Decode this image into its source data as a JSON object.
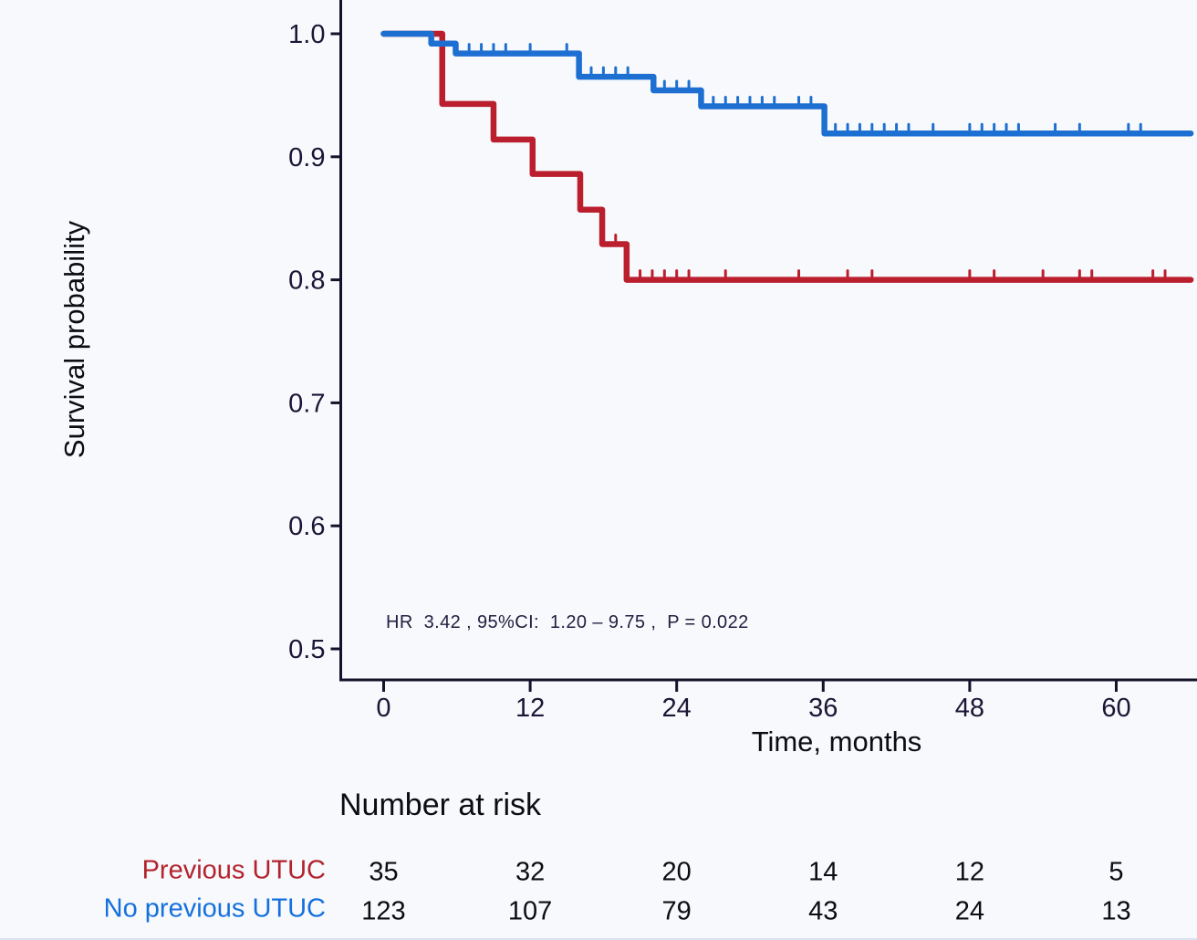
{
  "figure": {
    "background": "#f7f9fc",
    "axis_color": "#16112b",
    "tick_label_color": "#1d1535",
    "text_color": "#0c0c12"
  },
  "chart_data": {
    "type": "line",
    "subtype": "kaplan-meier-step",
    "title": "",
    "xlabel": "Time, months",
    "ylabel": "Survival probability",
    "annotation": "HR  3.42 , 95%CI:  1.20 – 9.75 ,  P = 0.022",
    "x_ticks": [
      0,
      12,
      24,
      36,
      48,
      60
    ],
    "x_tick_labels": [
      "0",
      "12",
      "24",
      "36",
      "48",
      "60"
    ],
    "y_ticks": [
      1.0,
      0.9,
      0.8,
      0.7,
      0.6,
      0.5
    ],
    "y_tick_labels": [
      "1.0",
      "0.9",
      "0.8",
      "0.7",
      "0.6",
      "0.5"
    ],
    "xlim": [
      -3.6,
      66.6
    ],
    "ylim": [
      0.475,
      1.027
    ],
    "x_end": 66.1,
    "grid": false,
    "legend": "none",
    "series": [
      {
        "name": "Previous UTUC",
        "color": "#bb1f2e",
        "steps": [
          [
            0,
            1.0
          ],
          [
            4.8,
            0.943
          ],
          [
            9.0,
            0.914
          ],
          [
            12.2,
            0.886
          ],
          [
            16.1,
            0.857
          ],
          [
            17.9,
            0.829
          ],
          [
            19.9,
            0.8
          ]
        ],
        "censor_times": [
          19,
          21,
          22,
          23,
          24,
          25,
          28,
          34,
          38,
          40,
          48,
          50,
          54,
          57,
          58,
          63,
          64
        ]
      },
      {
        "name": "No previous UTUC",
        "color": "#1e6fd2",
        "steps": [
          [
            0,
            1.0
          ],
          [
            3.9,
            0.992
          ],
          [
            5.9,
            0.984
          ],
          [
            16.0,
            0.965
          ],
          [
            22.1,
            0.954
          ],
          [
            26.0,
            0.941
          ],
          [
            36.1,
            0.919
          ]
        ],
        "censor_times": [
          7,
          8,
          9,
          10,
          12,
          15,
          17,
          18,
          19,
          20,
          23,
          24,
          25,
          27,
          28,
          29,
          30,
          31,
          32,
          34,
          35,
          37,
          38,
          39,
          40,
          41,
          42,
          43,
          45,
          48,
          49,
          50,
          51,
          52,
          55,
          57,
          61,
          62
        ]
      }
    ],
    "risk_table": {
      "title": "Number at risk",
      "times": [
        0,
        12,
        24,
        36,
        48,
        60
      ],
      "rows": [
        {
          "label": "Previous UTUC",
          "color": "#b2232e",
          "values": [
            "35",
            "32",
            "20",
            "14",
            "12",
            "5"
          ]
        },
        {
          "label": "No previous UTUC",
          "color": "#1570dd",
          "values": [
            "123",
            "107",
            "79",
            "43",
            "24",
            "13"
          ]
        }
      ]
    }
  }
}
